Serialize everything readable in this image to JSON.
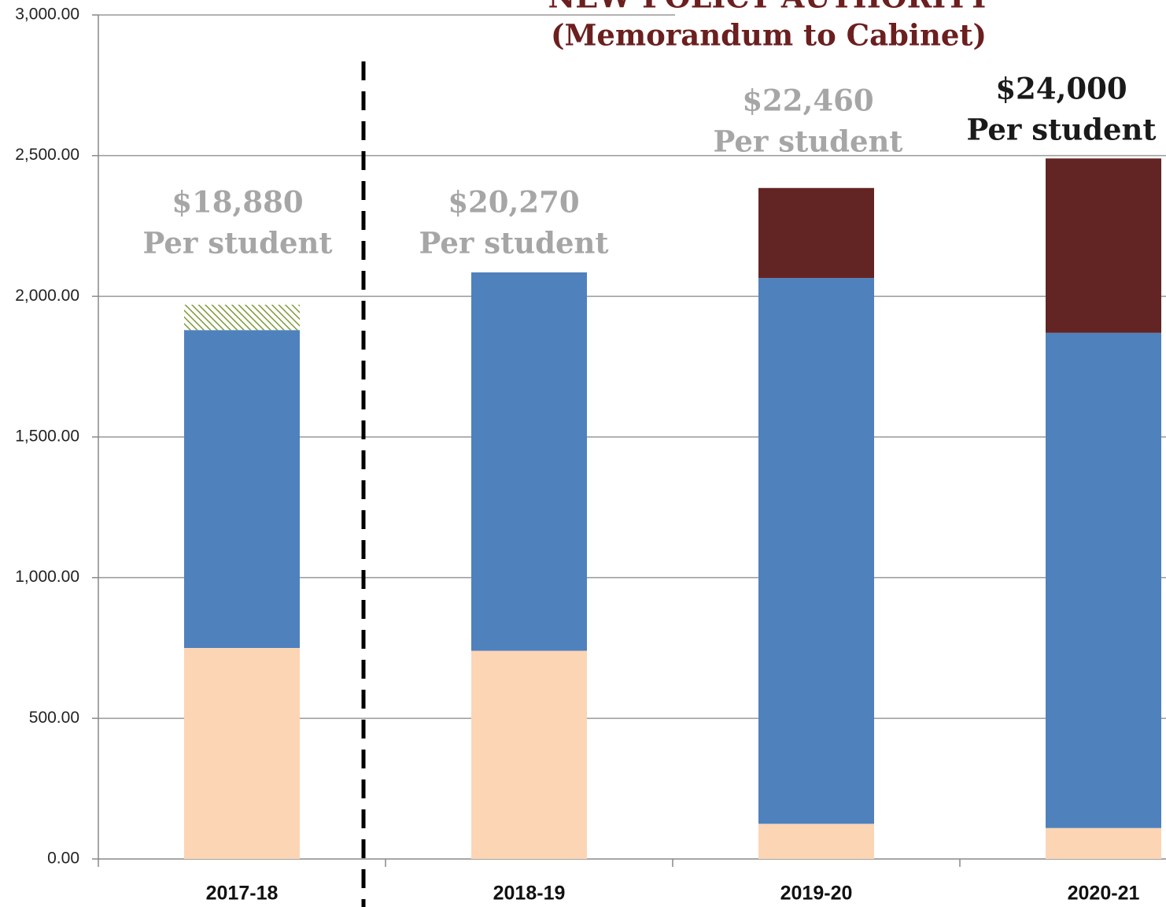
{
  "chart_data": {
    "type": "bar",
    "stacked": true,
    "title": "NEW POLICY AUTHORITY",
    "subtitle": "(Memorandum to Cabinet)",
    "categories": [
      "2017-18",
      "2018-19",
      "2019-20",
      "2020-21"
    ],
    "series": [
      {
        "color": "#fcd5b5",
        "values": [
          750,
          740,
          125,
          110
        ]
      },
      {
        "color": "#4f81bd",
        "values": [
          1130,
          1345,
          1940,
          1760
        ]
      },
      {
        "color": "#9bbb59",
        "pattern": "hatch",
        "values": [
          90,
          null,
          null,
          null
        ]
      },
      {
        "color": "#632523",
        "values": [
          null,
          null,
          320,
          620
        ]
      }
    ],
    "annotations": [
      {
        "lines": [
          "$18,880",
          "Per student"
        ],
        "color": "#a6a6a6"
      },
      {
        "lines": [
          "$20,270",
          "Per student"
        ],
        "color": "#a6a6a6"
      },
      {
        "lines": [
          "$22,460",
          "Per student"
        ],
        "color": "#a6a6a6"
      },
      {
        "lines": [
          "$24,000",
          "Per student"
        ],
        "color": "#1a1a1a"
      }
    ],
    "ylim": [
      0,
      3000
    ],
    "yticks": [
      {
        "value": 0,
        "label": "0.00"
      },
      {
        "value": 500,
        "label": "500.00"
      },
      {
        "value": 1000,
        "label": "1,000.00"
      },
      {
        "value": 1500,
        "label": "1,500.00"
      },
      {
        "value": 2000,
        "label": "2,000.00"
      },
      {
        "value": 2500,
        "label": "2,500.00"
      },
      {
        "value": 3000,
        "label": "3,000.00"
      }
    ],
    "grid": true
  }
}
